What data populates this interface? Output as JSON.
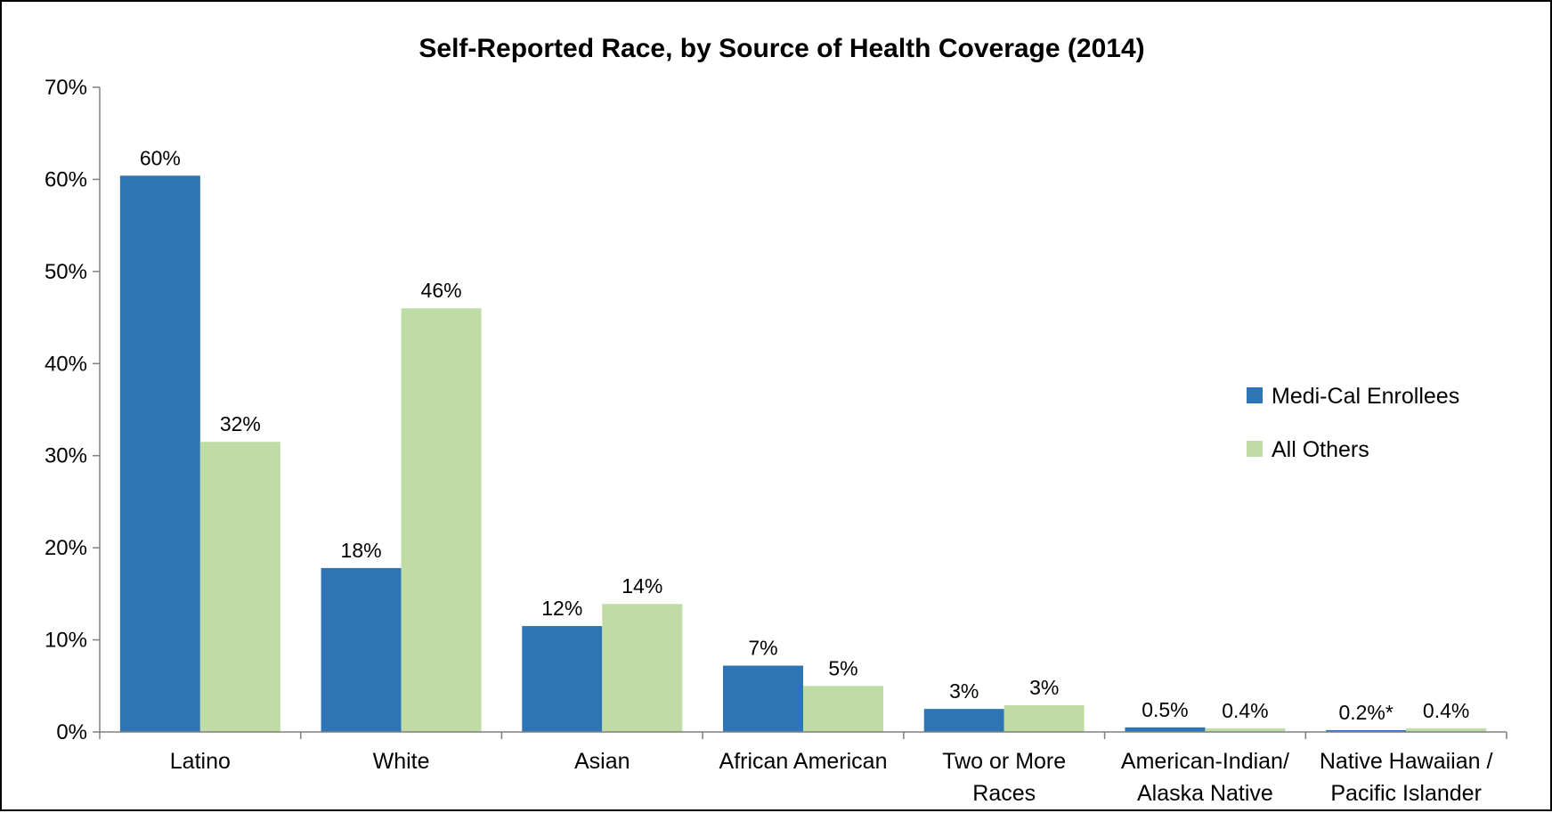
{
  "chart_data": {
    "type": "bar",
    "title": "Self-Reported Race, by Source of Health Coverage (2014)",
    "xlabel": "",
    "ylabel": "",
    "ylim": [
      0,
      70
    ],
    "y_ticks": [
      "0%",
      "10%",
      "20%",
      "30%",
      "40%",
      "50%",
      "60%",
      "70%"
    ],
    "grid": false,
    "legend_position": "right",
    "categories": [
      [
        "Latino"
      ],
      [
        "White"
      ],
      [
        "Asian"
      ],
      [
        "African American"
      ],
      [
        "Two or More",
        "Races"
      ],
      [
        "American-Indian/",
        "Alaska Native"
      ],
      [
        "Native Hawaiian /",
        "Pacific Islander"
      ]
    ],
    "series": [
      {
        "name": "Medi-Cal Enrollees",
        "color": "#2E75B6",
        "values": [
          60.4,
          17.8,
          11.5,
          7.2,
          2.5,
          0.5,
          0.2
        ],
        "labels": [
          "60%",
          "18%",
          "12%",
          "7%",
          "3%",
          "0.5%",
          "0.2%*"
        ]
      },
      {
        "name": "All Others",
        "color": "#C0DCA6",
        "values": [
          31.5,
          46.0,
          13.9,
          5.0,
          2.9,
          0.4,
          0.4
        ],
        "labels": [
          "32%",
          "46%",
          "14%",
          "5%",
          "3%",
          "0.4%",
          "0.4%"
        ]
      }
    ]
  }
}
